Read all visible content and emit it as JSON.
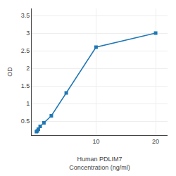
{
  "chart_data": {
    "type": "line",
    "x": [
      0,
      0.156,
      0.313,
      0.625,
      1.25,
      2.5,
      5,
      10,
      20
    ],
    "values": [
      0.2,
      0.22,
      0.27,
      0.35,
      0.45,
      0.65,
      1.3,
      2.6,
      3.0
    ],
    "xlabel": "Human PDLIM7\nConcentration (ng/ml)",
    "ylabel": "OD",
    "xlim": [
      -0.8,
      22
    ],
    "xticks": [
      10,
      20
    ],
    "ylim": [
      0.1,
      3.7
    ],
    "yticks": [
      0.5,
      1,
      1.5,
      2,
      2.5,
      3,
      3.5
    ],
    "marker": "square",
    "grid": true
  }
}
